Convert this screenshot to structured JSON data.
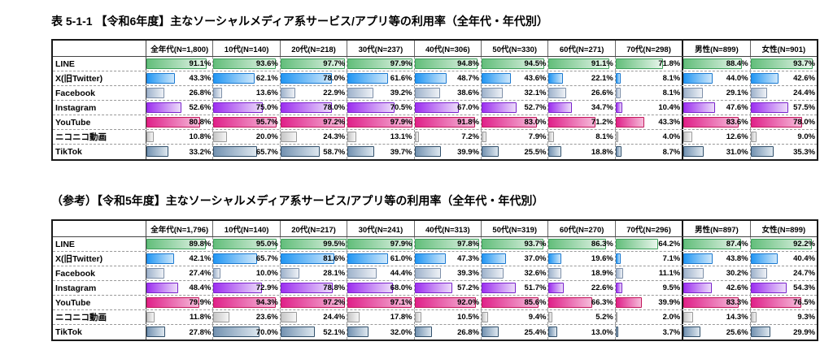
{
  "colors": {
    "line": {
      "border": "#3ea15b",
      "from": "#63be7b",
      "to": "#e9f6ec"
    },
    "x": {
      "border": "#1b79d0",
      "from": "#2196f3",
      "to": "#cfe8fb"
    },
    "facebook": {
      "border": "#7d8fa8",
      "from": "#9fb3cc",
      "to": "#eef1f6"
    },
    "instagram": {
      "border": "#7a22cc",
      "from": "#9d2ff0",
      "to": "#ecdcf9"
    },
    "youtube": {
      "border": "#c2185b",
      "from": "#e0218a",
      "to": "#f5bcda"
    },
    "niconico": {
      "border": "#9a9a9a",
      "from": "#c6c6c6",
      "to": "#f6f6f6"
    },
    "tiktok": {
      "border": "#31506b",
      "from": "#7392b1",
      "to": "#dde7ef"
    }
  },
  "chart_data": [
    {
      "type": "table",
      "title": "表 5-1-1 【令和6年度】主なソーシャルメディア系サービス/アプリ等の利用率（全年代・年代別）",
      "value_suffix": "%",
      "value_range": [
        0,
        100
      ],
      "columns": [
        "全年代(N=1,800)",
        "10代(N=140)",
        "20代(N=218)",
        "30代(N=237)",
        "40代(N=306)",
        "50代(N=330)",
        "60代(N=271)",
        "70代(N=298)",
        "男性(N=899)",
        "女性(N=901)"
      ],
      "series": [
        {
          "name": "LINE",
          "color": "line",
          "values": [
            91.1,
            93.6,
            97.7,
            97.9,
            94.8,
            94.5,
            91.1,
            71.8,
            88.4,
            93.7
          ]
        },
        {
          "name": "X(旧Twitter)",
          "color": "x",
          "values": [
            43.3,
            62.1,
            78.0,
            61.6,
            48.7,
            43.6,
            22.1,
            8.1,
            44.0,
            42.6
          ]
        },
        {
          "name": "Facebook",
          "color": "facebook",
          "values": [
            26.8,
            13.6,
            22.9,
            39.2,
            38.6,
            32.1,
            26.6,
            8.1,
            29.1,
            24.4
          ]
        },
        {
          "name": "Instagram",
          "color": "instagram",
          "values": [
            52.6,
            75.0,
            78.0,
            70.5,
            67.0,
            52.7,
            34.7,
            10.4,
            47.6,
            57.5
          ]
        },
        {
          "name": "YouTube",
          "color": "youtube",
          "values": [
            80.8,
            95.7,
            97.2,
            97.9,
            91.8,
            83.0,
            71.2,
            43.3,
            83.6,
            78.0
          ]
        },
        {
          "name": "ニコニコ動画",
          "color": "niconico",
          "values": [
            10.8,
            20.0,
            24.3,
            13.1,
            7.2,
            7.9,
            8.1,
            4.0,
            12.6,
            9.0
          ]
        },
        {
          "name": "TikTok",
          "color": "tiktok",
          "values": [
            33.2,
            65.7,
            58.7,
            39.7,
            39.9,
            25.5,
            18.8,
            8.7,
            31.0,
            35.3
          ]
        }
      ]
    },
    {
      "type": "table",
      "title": "（参考）【令和5年度】主なソーシャルメディア系サービス/アプリ等の利用率（全年代・年代別）",
      "value_suffix": "%",
      "value_range": [
        0,
        100
      ],
      "columns": [
        "全年代(N=1,796)",
        "10代(N=140)",
        "20代(N=217)",
        "30代(N=241)",
        "40代(N=313)",
        "50代(N=319)",
        "60代(N=270)",
        "70代(N=296)",
        "男性(N=897)",
        "女性(N=899)"
      ],
      "series": [
        {
          "name": "LINE",
          "color": "line",
          "values": [
            89.8,
            95.0,
            99.5,
            97.9,
            97.8,
            93.7,
            86.3,
            64.2,
            87.4,
            92.2
          ]
        },
        {
          "name": "X(旧Twitter)",
          "color": "x",
          "values": [
            42.1,
            65.7,
            81.6,
            61.0,
            47.3,
            37.0,
            19.6,
            7.1,
            43.8,
            40.4
          ]
        },
        {
          "name": "Facebook",
          "color": "facebook",
          "values": [
            27.4,
            10.0,
            28.1,
            44.4,
            39.3,
            32.6,
            18.9,
            11.1,
            30.2,
            24.7
          ]
        },
        {
          "name": "Instagram",
          "color": "instagram",
          "values": [
            48.4,
            72.9,
            78.8,
            68.0,
            57.2,
            51.7,
            22.6,
            9.5,
            42.6,
            54.3
          ]
        },
        {
          "name": "YouTube",
          "color": "youtube",
          "values": [
            79.9,
            94.3,
            97.2,
            97.1,
            92.0,
            85.6,
            66.3,
            39.9,
            83.3,
            76.5
          ]
        },
        {
          "name": "ニコニコ動画",
          "color": "niconico",
          "values": [
            11.8,
            23.6,
            24.4,
            17.8,
            10.5,
            9.4,
            5.2,
            2.0,
            14.3,
            9.3
          ]
        },
        {
          "name": "TikTok",
          "color": "tiktok",
          "values": [
            27.8,
            70.0,
            52.1,
            32.0,
            26.8,
            25.4,
            13.0,
            3.7,
            25.6,
            29.9
          ]
        }
      ]
    }
  ]
}
